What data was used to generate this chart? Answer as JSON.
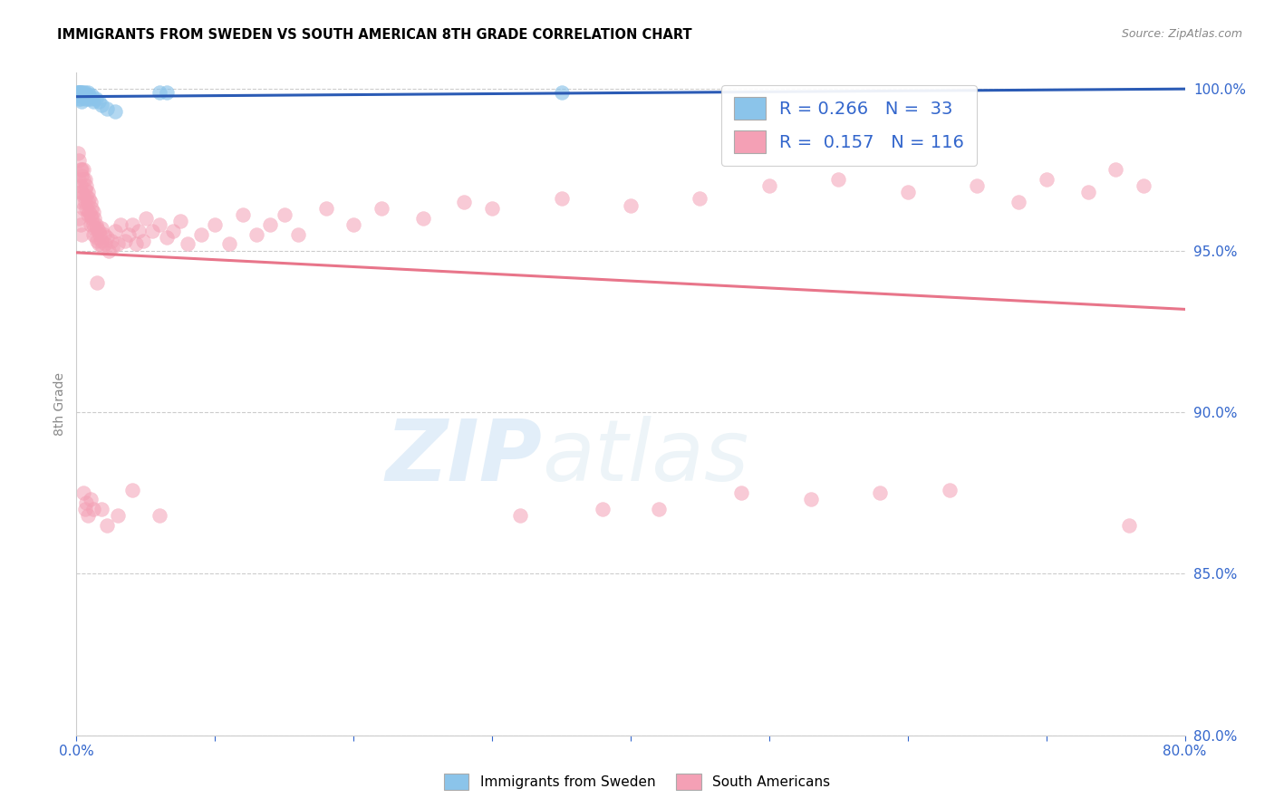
{
  "title": "IMMIGRANTS FROM SWEDEN VS SOUTH AMERICAN 8TH GRADE CORRELATION CHART",
  "source": "Source: ZipAtlas.com",
  "ylabel": "8th Grade",
  "xlim": [
    0.0,
    0.8
  ],
  "ylim": [
    0.8,
    1.005
  ],
  "xticks": [
    0.0,
    0.1,
    0.2,
    0.3,
    0.4,
    0.5,
    0.6,
    0.7,
    0.8
  ],
  "xticklabels": [
    "0.0%",
    "",
    "",
    "",
    "",
    "",
    "",
    "",
    "80.0%"
  ],
  "yticks": [
    0.8,
    0.85,
    0.9,
    0.95,
    1.0
  ],
  "yticklabels": [
    "80.0%",
    "85.0%",
    "90.0%",
    "95.0%",
    "100.0%"
  ],
  "legend_labels": [
    "Immigrants from Sweden",
    "South Americans"
  ],
  "legend_R": [
    0.266,
    0.157
  ],
  "legend_N": [
    33,
    116
  ],
  "blue_color": "#8BC4EA",
  "pink_color": "#F4A0B5",
  "blue_line_color": "#2B5BB5",
  "pink_line_color": "#E8758A",
  "sweden_x": [
    0.001,
    0.001,
    0.001,
    0.002,
    0.002,
    0.002,
    0.002,
    0.003,
    0.003,
    0.003,
    0.003,
    0.004,
    0.004,
    0.004,
    0.005,
    0.005,
    0.006,
    0.006,
    0.007,
    0.008,
    0.008,
    0.009,
    0.01,
    0.011,
    0.012,
    0.014,
    0.016,
    0.018,
    0.022,
    0.028,
    0.06,
    0.065,
    0.35
  ],
  "sweden_y": [
    0.999,
    0.999,
    0.998,
    0.999,
    0.999,
    0.998,
    0.997,
    0.999,
    0.999,
    0.998,
    0.997,
    0.999,
    0.998,
    0.996,
    0.999,
    0.998,
    0.999,
    0.997,
    0.998,
    0.999,
    0.997,
    0.998,
    0.997,
    0.998,
    0.996,
    0.997,
    0.996,
    0.995,
    0.994,
    0.993,
    0.999,
    0.999,
    0.999
  ],
  "south_x": [
    0.001,
    0.002,
    0.002,
    0.003,
    0.003,
    0.003,
    0.004,
    0.004,
    0.004,
    0.004,
    0.005,
    0.005,
    0.005,
    0.005,
    0.006,
    0.006,
    0.006,
    0.007,
    0.007,
    0.007,
    0.008,
    0.008,
    0.008,
    0.009,
    0.009,
    0.01,
    0.01,
    0.01,
    0.011,
    0.011,
    0.012,
    0.012,
    0.012,
    0.013,
    0.013,
    0.014,
    0.014,
    0.015,
    0.015,
    0.016,
    0.016,
    0.017,
    0.018,
    0.018,
    0.019,
    0.02,
    0.021,
    0.022,
    0.023,
    0.025,
    0.026,
    0.028,
    0.03,
    0.032,
    0.035,
    0.038,
    0.04,
    0.043,
    0.045,
    0.048,
    0.05,
    0.055,
    0.06,
    0.065,
    0.07,
    0.075,
    0.08,
    0.09,
    0.1,
    0.11,
    0.12,
    0.13,
    0.14,
    0.15,
    0.16,
    0.18,
    0.2,
    0.22,
    0.25,
    0.28,
    0.3,
    0.32,
    0.35,
    0.38,
    0.4,
    0.42,
    0.45,
    0.48,
    0.5,
    0.53,
    0.55,
    0.58,
    0.6,
    0.63,
    0.65,
    0.68,
    0.7,
    0.73,
    0.75,
    0.77,
    0.002,
    0.003,
    0.004,
    0.005,
    0.006,
    0.007,
    0.008,
    0.01,
    0.012,
    0.015,
    0.018,
    0.022,
    0.03,
    0.04,
    0.06,
    0.76
  ],
  "south_y": [
    0.98,
    0.978,
    0.972,
    0.975,
    0.97,
    0.968,
    0.975,
    0.973,
    0.968,
    0.965,
    0.975,
    0.972,
    0.967,
    0.963,
    0.972,
    0.969,
    0.965,
    0.97,
    0.967,
    0.963,
    0.968,
    0.965,
    0.961,
    0.966,
    0.962,
    0.965,
    0.961,
    0.958,
    0.963,
    0.96,
    0.962,
    0.958,
    0.955,
    0.96,
    0.957,
    0.958,
    0.954,
    0.957,
    0.953,
    0.956,
    0.952,
    0.955,
    0.957,
    0.953,
    0.951,
    0.955,
    0.952,
    0.954,
    0.95,
    0.953,
    0.951,
    0.956,
    0.952,
    0.958,
    0.953,
    0.955,
    0.958,
    0.952,
    0.956,
    0.953,
    0.96,
    0.956,
    0.958,
    0.954,
    0.956,
    0.959,
    0.952,
    0.955,
    0.958,
    0.952,
    0.961,
    0.955,
    0.958,
    0.961,
    0.955,
    0.963,
    0.958,
    0.963,
    0.96,
    0.965,
    0.963,
    0.868,
    0.966,
    0.87,
    0.964,
    0.87,
    0.966,
    0.875,
    0.97,
    0.873,
    0.972,
    0.875,
    0.968,
    0.876,
    0.97,
    0.965,
    0.972,
    0.968,
    0.975,
    0.97,
    0.96,
    0.958,
    0.955,
    0.875,
    0.87,
    0.872,
    0.868,
    0.873,
    0.87,
    0.94,
    0.87,
    0.865,
    0.868,
    0.876,
    0.868,
    0.865
  ]
}
